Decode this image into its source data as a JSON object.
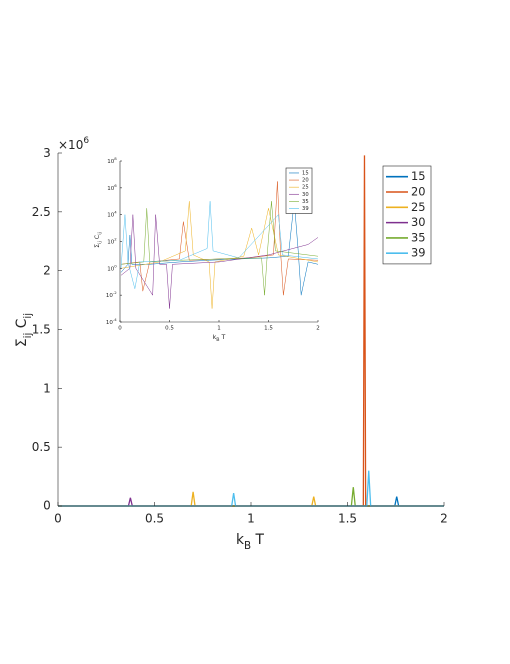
{
  "chart_data": [
    {
      "type": "line",
      "xlabel": [
        "k",
        "B",
        " T"
      ],
      "ylabel": [
        "Σ",
        "ij",
        " C",
        "ij"
      ],
      "y_multiplier": {
        "label": "×10",
        "exponent": "6"
      },
      "xlim": [
        0,
        2
      ],
      "ylim": [
        0,
        3000000
      ],
      "xticks": [
        0,
        0.5,
        1,
        1.5,
        2
      ],
      "yticks": [
        0,
        {
          "value": 500000,
          "label": "0.5"
        },
        {
          "value": 1000000,
          "label": "1"
        },
        {
          "value": 1500000,
          "label": "1.5"
        },
        {
          "value": 2000000,
          "label": "2"
        },
        {
          "value": 2500000,
          "label": "2.5"
        },
        {
          "value": 3000000,
          "label": "3"
        }
      ],
      "legend": "northeast",
      "series": [
        {
          "name": "15",
          "color": "#0072BD",
          "x": [
            0,
            1.745,
            1.755,
            1.765,
            2
          ],
          "values": [
            0,
            0,
            80000,
            0,
            0
          ]
        },
        {
          "name": "20",
          "color": "#D95319",
          "x": [
            0,
            1.582,
            1.588,
            1.594,
            2
          ],
          "values": [
            0,
            0,
            2980000,
            0,
            0
          ]
        },
        {
          "name": "25",
          "color": "#EDB120",
          "x": [
            0,
            0.69,
            0.7,
            0.71,
            1.315,
            1.325,
            1.335,
            2
          ],
          "values": [
            0,
            0,
            120000,
            0,
            0,
            80000,
            0,
            0
          ]
        },
        {
          "name": "30",
          "color": "#7E2F8E",
          "x": [
            0,
            0.365,
            0.375,
            0.385,
            2
          ],
          "values": [
            0,
            0,
            70000,
            0,
            0
          ]
        },
        {
          "name": "35",
          "color": "#77AC30",
          "x": [
            0,
            1.52,
            1.53,
            1.54,
            2
          ],
          "values": [
            0,
            0,
            160000,
            0,
            0
          ]
        },
        {
          "name": "39",
          "color": "#4DBEEE",
          "x": [
            0,
            0.9,
            0.91,
            0.92,
            1.6,
            1.61,
            1.62,
            2
          ],
          "values": [
            0,
            0,
            110000,
            0,
            0,
            300000,
            0,
            0
          ]
        }
      ]
    },
    {
      "type": "line",
      "xlabel": [
        "k",
        "B",
        " T"
      ],
      "ylabel": [
        "Σ",
        "ij",
        " C",
        "ij"
      ],
      "yscale": "log",
      "xlim": [
        0,
        2
      ],
      "ylim": [
        0.0001,
        100000000
      ],
      "xticks": [
        0,
        0.5,
        1,
        1.5,
        2
      ],
      "yticks": [
        {
          "value": 0.0001,
          "label": "10",
          "exponent": "-4"
        },
        {
          "value": 0.01,
          "label": "10",
          "exponent": "-2"
        },
        {
          "value": 1,
          "label": "10",
          "exponent": "0"
        },
        {
          "value": 100,
          "label": "10",
          "exponent": "2"
        },
        {
          "value": 10000,
          "label": "10",
          "exponent": "4"
        },
        {
          "value": 1000000,
          "label": "10",
          "exponent": "6"
        },
        {
          "value": 100000000,
          "label": "10",
          "exponent": "8"
        }
      ],
      "legend": "northeast",
      "series": [
        {
          "name": "15",
          "color": "#0072BD",
          "x": [
            0.01,
            0.08,
            0.1,
            0.12,
            0.3,
            0.6,
            0.9,
            1.2,
            1.5,
            1.7,
            1.76,
            1.8,
            1.83,
            1.9,
            2
          ],
          "values": [
            0.5,
            2,
            300,
            2,
            2,
            3,
            4,
            5,
            6,
            8,
            100000,
            20,
            0.01,
            3,
            2
          ]
        },
        {
          "name": "20",
          "color": "#D95319",
          "x": [
            0.01,
            0.2,
            0.23,
            0.3,
            0.6,
            0.64,
            0.7,
            1.0,
            1.3,
            1.55,
            1.59,
            1.62,
            1.65,
            1.7,
            2
          ],
          "values": [
            2,
            3,
            0.02,
            3,
            5,
            3000,
            4,
            5,
            6,
            10,
            3000000,
            30,
            0.01,
            5,
            4
          ]
        },
        {
          "name": "25",
          "color": "#EDB120",
          "x": [
            0.01,
            0.4,
            0.66,
            0.7,
            0.74,
            0.9,
            0.93,
            0.96,
            1.25,
            1.33,
            1.4,
            1.5,
            1.6,
            2
          ],
          "values": [
            1,
            3,
            20,
            100000,
            10,
            3,
            0.001,
            3,
            8,
            1000,
            10,
            30000,
            10,
            3
          ]
        },
        {
          "name": "30",
          "color": "#7E2F8E",
          "x": [
            0.01,
            0.1,
            0.13,
            0.16,
            0.33,
            0.36,
            0.4,
            0.47,
            0.5,
            0.53,
            1.0,
            1.5,
            1.9,
            2
          ],
          "values": [
            0.3,
            1,
            10000,
            1,
            0.01,
            10000,
            2,
            2,
            0.001,
            2,
            3,
            10,
            60,
            200
          ]
        },
        {
          "name": "35",
          "color": "#77AC30",
          "x": [
            0.01,
            0.24,
            0.27,
            0.3,
            0.6,
            1.0,
            1.43,
            1.46,
            1.49,
            1.53,
            1.57,
            2
          ],
          "values": [
            2,
            3,
            30000,
            3,
            4,
            5,
            6,
            0.01,
            20,
            100000,
            20,
            8
          ]
        },
        {
          "name": "39",
          "color": "#4DBEEE",
          "x": [
            0.01,
            0.05,
            0.08,
            0.15,
            0.2,
            0.6,
            0.88,
            0.91,
            0.94,
            1.2,
            1.6,
            1.64,
            2
          ],
          "values": [
            1,
            10000,
            3,
            0.03,
            3,
            4,
            30,
            100000,
            20,
            6,
            10000,
            10,
            5
          ]
        }
      ]
    }
  ]
}
